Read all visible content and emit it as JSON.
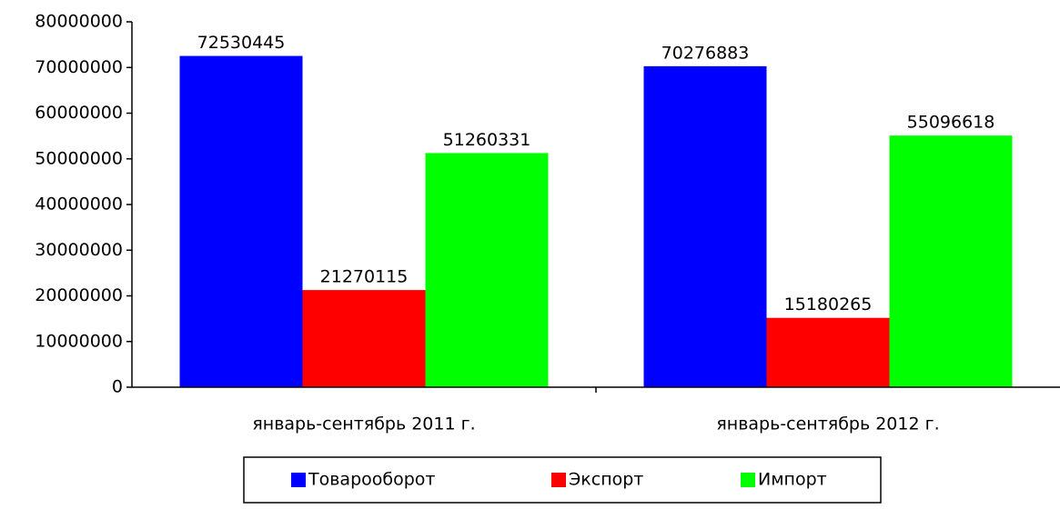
{
  "chart_data": {
    "type": "bar",
    "categories": [
      "январь-сентябрь 2011 г.",
      "январь-сентябрь 2012 г."
    ],
    "series": [
      {
        "name": "Товарооборот",
        "color": "#0000ff",
        "values": [
          72530445,
          70276883
        ]
      },
      {
        "name": "Экспорт",
        "color": "#ff0000",
        "values": [
          21270115,
          15180265
        ]
      },
      {
        "name": "Импорт",
        "color": "#00ff00",
        "values": [
          51260331,
          55096618
        ]
      }
    ],
    "ylim": [
      0,
      80000000
    ],
    "yticks": [
      0,
      10000000,
      20000000,
      30000000,
      40000000,
      50000000,
      60000000,
      70000000,
      80000000
    ],
    "legend": "bottom"
  }
}
